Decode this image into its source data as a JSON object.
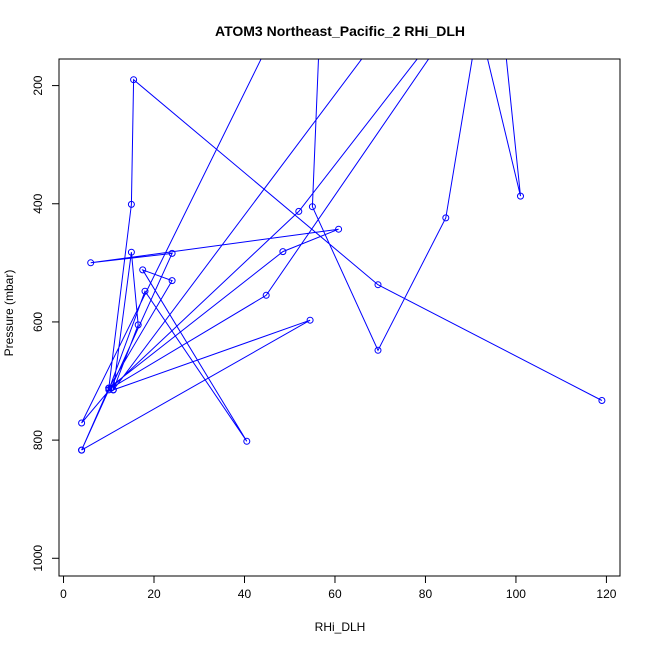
{
  "chart_data": {
    "type": "line",
    "title": "ATOM3 Northeast_Pacific_2 RHi_DLH",
    "xlabel": "RHi_DLH",
    "ylabel": "Pressure (mbar)",
    "xlim": [
      -1,
      123
    ],
    "ylim": [
      1030,
      155
    ],
    "y_inverted": true,
    "x_ticks": [
      0,
      20,
      40,
      60,
      80,
      100,
      120
    ],
    "y_ticks": [
      200,
      400,
      600,
      800,
      1000
    ],
    "grid": false,
    "legend": "none",
    "series": [
      {
        "color": "#0000ff",
        "marker": "open-circle",
        "points": [
          [
            119,
            733
          ],
          [
            69.5,
            537
          ],
          [
            15.5,
            190
          ],
          [
            15,
            401
          ],
          [
            10,
            712
          ],
          [
            4,
            817
          ],
          [
            10,
            715
          ],
          [
            18,
            548
          ],
          [
            40.5,
            802
          ],
          [
            17.5,
            512
          ],
          [
            24,
            530
          ],
          [
            10,
            712
          ],
          [
            48.5,
            481
          ],
          [
            60.8,
            443
          ],
          [
            6,
            500
          ],
          [
            24,
            484
          ],
          [
            10.5,
            712
          ],
          [
            44.8,
            555
          ],
          [
            100,
            -60
          ],
          [
            52,
            413
          ],
          [
            10.5,
            712
          ],
          [
            4,
            771
          ],
          [
            57.5,
            -60
          ],
          [
            55,
            405
          ],
          [
            69.5,
            648
          ],
          [
            84.5,
            424
          ],
          [
            95,
            -60
          ],
          [
            101,
            387
          ],
          [
            87,
            -60
          ],
          [
            11,
            715
          ],
          [
            16.5,
            605
          ],
          [
            15,
            482
          ],
          [
            11,
            715
          ],
          [
            54.5,
            597
          ],
          [
            4,
            817
          ]
        ]
      }
    ]
  }
}
